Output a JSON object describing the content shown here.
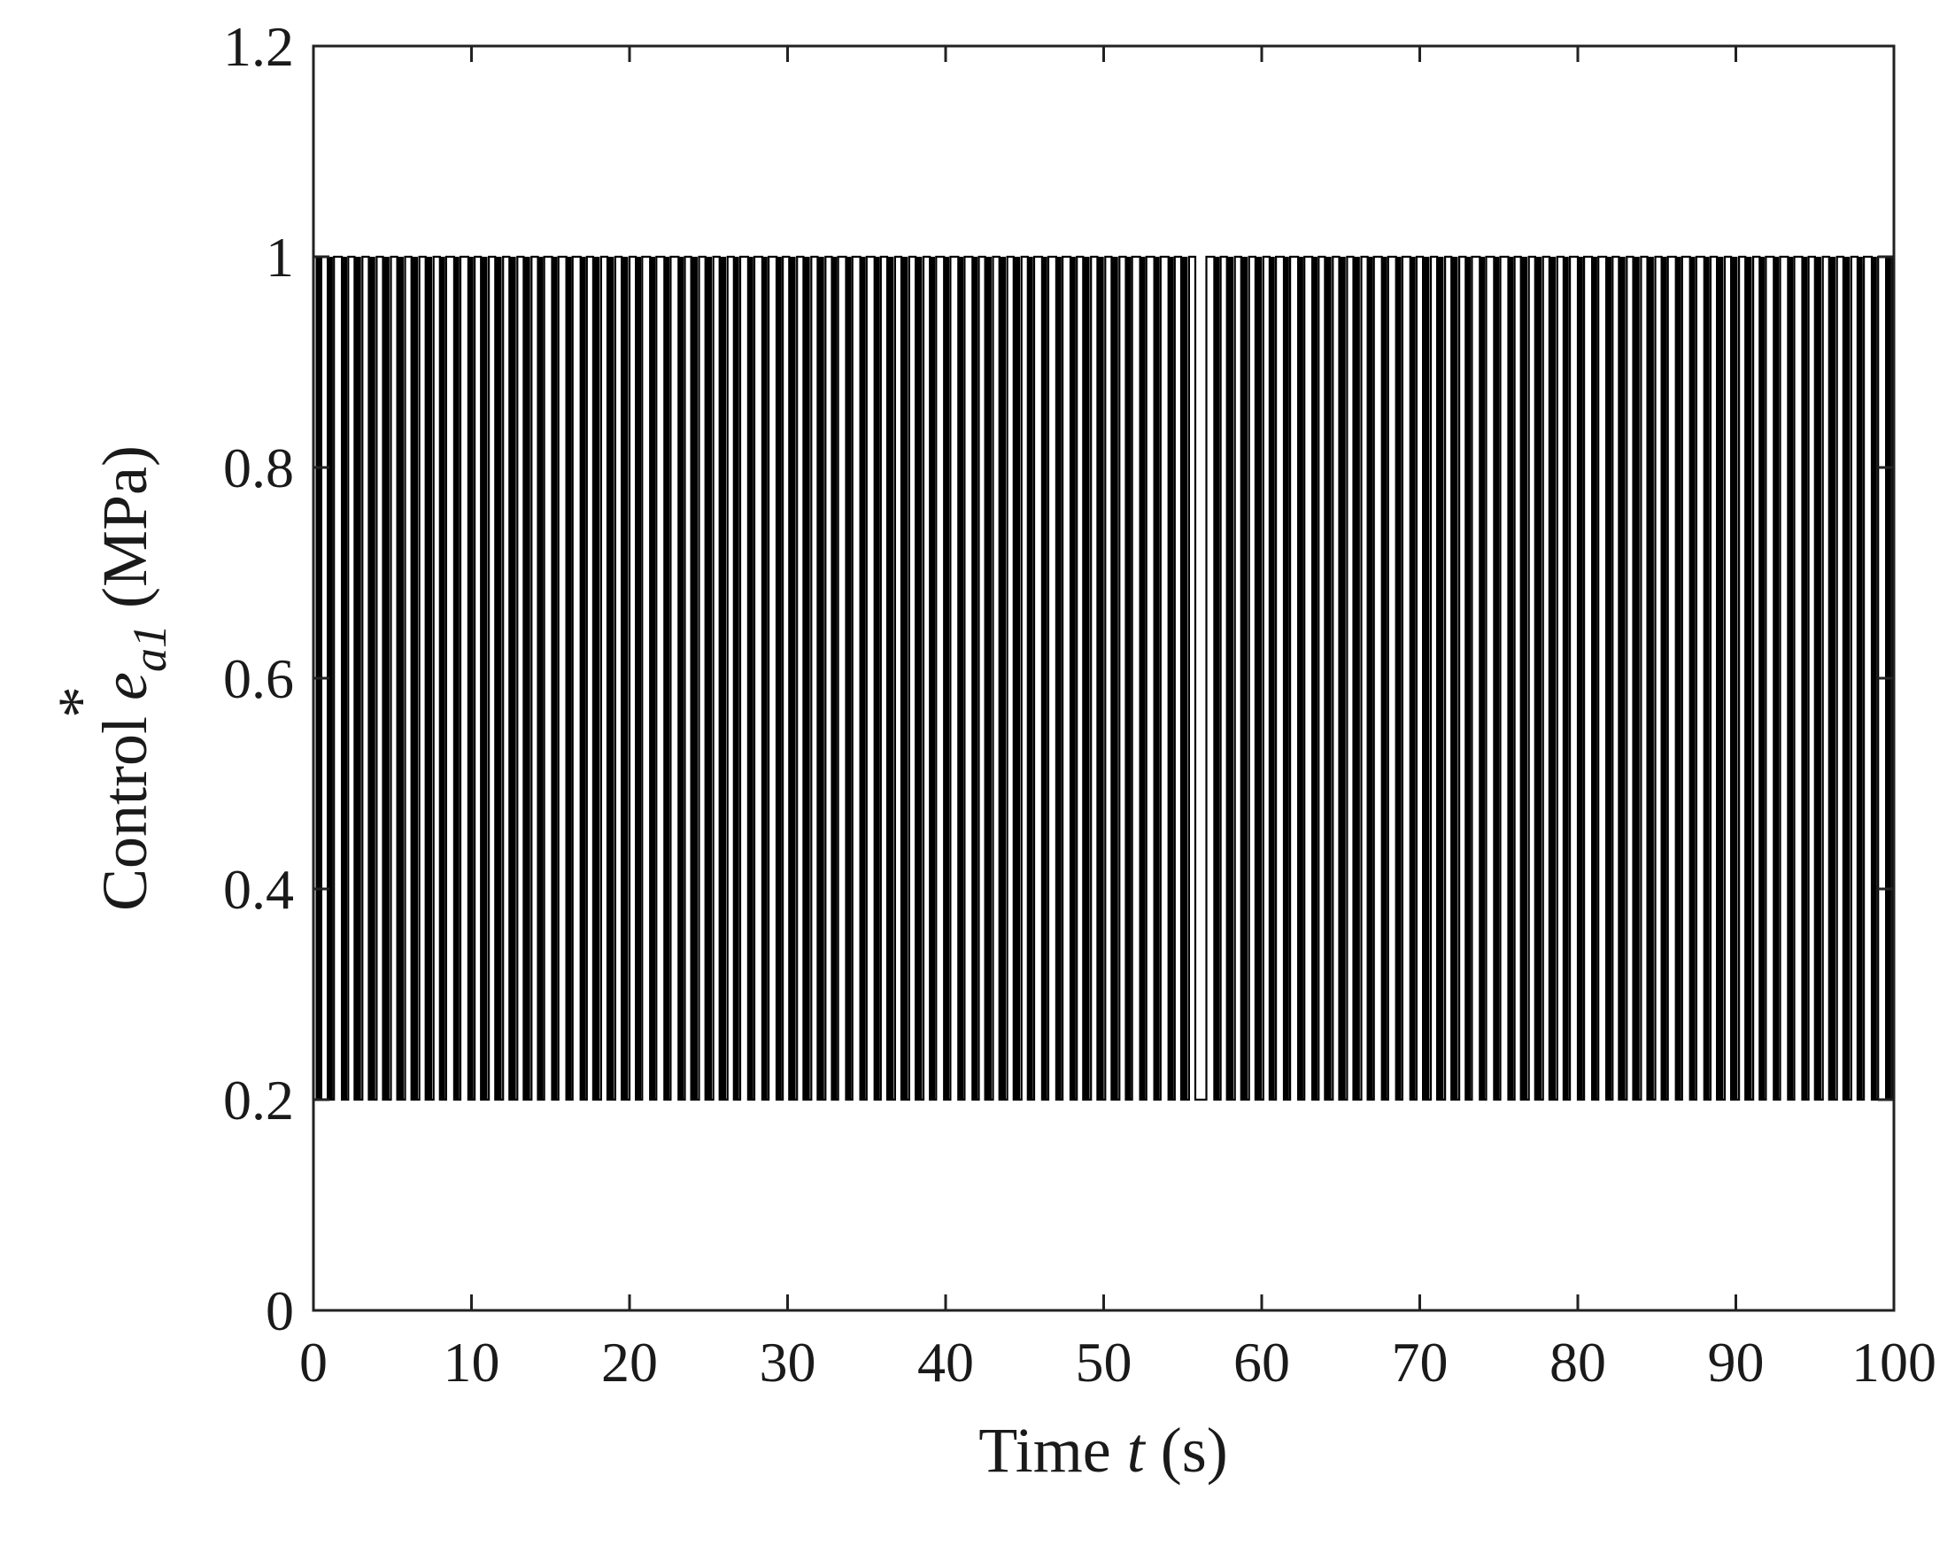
{
  "chart_data": {
    "type": "line",
    "xlabel_prefix": "Time ",
    "xlabel_var": "t",
    "xlabel_suffix": " (s)",
    "ylabel_prefix": "Control ",
    "ylabel_var": "e",
    "ylabel_sub": "a1",
    "ylabel_sup": "*",
    "ylabel_suffix": " (MPa)",
    "xlim": [
      0,
      100
    ],
    "ylim": [
      0,
      1.2
    ],
    "xticks": [
      0,
      10,
      20,
      30,
      40,
      50,
      60,
      70,
      80,
      90,
      100
    ],
    "yticks": [
      0,
      0.2,
      0.4,
      0.6,
      0.8,
      1,
      1.2
    ],
    "xtick_labels": [
      "0",
      "10",
      "20",
      "30",
      "40",
      "50",
      "60",
      "70",
      "80",
      "90",
      "100"
    ],
    "ytick_labels": [
      "0",
      "0.2",
      "0.4",
      "0.6",
      "0.8",
      "1",
      "1.2"
    ],
    "grid": false,
    "series": [
      {
        "color": "#000000",
        "description": "bang-bang switching signal alternating between 0.2 and 1 MPa",
        "levels": [
          0.2,
          1.0
        ],
        "switch_times": [
          0.2,
          0.5,
          0.9,
          1.3,
          1.8,
          2.2,
          2.6,
          3.1,
          3.5,
          4.0,
          4.4,
          4.9,
          5.3,
          5.8,
          6.2,
          6.7,
          7.1,
          7.6,
          8.0,
          8.4,
          8.9,
          9.3,
          9.8,
          10.2,
          10.6,
          11.1,
          11.5,
          12.0,
          12.4,
          12.9,
          13.3,
          13.8,
          14.2,
          14.6,
          15.1,
          15.5,
          16.0,
          16.4,
          16.9,
          17.3,
          17.7,
          18.2,
          18.6,
          19.1,
          19.5,
          20.0,
          20.4,
          20.8,
          21.3,
          21.7,
          22.2,
          22.6,
          23.1,
          23.5,
          23.9,
          24.4,
          24.8,
          25.3,
          25.7,
          26.2,
          26.6,
          27.0,
          27.5,
          27.9,
          28.4,
          28.8,
          29.3,
          29.7,
          30.1,
          30.6,
          31.0,
          31.5,
          31.9,
          32.4,
          32.8,
          33.2,
          33.7,
          34.1,
          34.6,
          35.0,
          35.5,
          35.9,
          36.3,
          36.8,
          37.2,
          37.7,
          38.1,
          38.6,
          39.0,
          39.4,
          39.9,
          40.3,
          40.8,
          41.2,
          41.7,
          42.1,
          42.5,
          43.0,
          43.4,
          43.9,
          44.3,
          44.8,
          45.2,
          45.6,
          46.1,
          46.5,
          47.0,
          47.4,
          47.9,
          48.3,
          48.7,
          49.2,
          49.6,
          50.1,
          50.5,
          51.0,
          51.4,
          51.8,
          52.3,
          52.7,
          53.2,
          53.6,
          54.1,
          54.5,
          54.9,
          55.4,
          55.8,
          56.5,
          57.0,
          57.4,
          57.8,
          58.3,
          58.7,
          59.2,
          59.6,
          60.1,
          60.5,
          60.9,
          61.4,
          61.8,
          62.3,
          62.7,
          63.2,
          63.6,
          64.0,
          64.5,
          64.9,
          65.4,
          65.8,
          66.3,
          66.7,
          67.1,
          67.6,
          68.0,
          68.5,
          68.9,
          69.4,
          69.8,
          70.2,
          70.7,
          71.1,
          71.6,
          72.0,
          72.5,
          72.9,
          73.3,
          73.8,
          74.2,
          74.7,
          75.1,
          75.6,
          76.0,
          76.4,
          76.9,
          77.3,
          77.8,
          78.2,
          78.7,
          79.1,
          79.5,
          80.0,
          80.4,
          80.9,
          81.3,
          81.8,
          82.2,
          82.6,
          83.1,
          83.5,
          84.0,
          84.4,
          84.9,
          85.3,
          85.7,
          86.2,
          86.6,
          87.1,
          87.5,
          88.0,
          88.4,
          88.8,
          89.3,
          89.7,
          90.2,
          90.6,
          91.1,
          91.5,
          91.9,
          92.4,
          92.8,
          93.3,
          93.7,
          94.2,
          94.6,
          95.0,
          95.5,
          95.9,
          96.4,
          96.8,
          97.3,
          97.7,
          98.1,
          98.6,
          99.0,
          99.5,
          99.9
        ],
        "gaps": [
          [
            55.8,
            56.5
          ]
        ]
      }
    ]
  }
}
